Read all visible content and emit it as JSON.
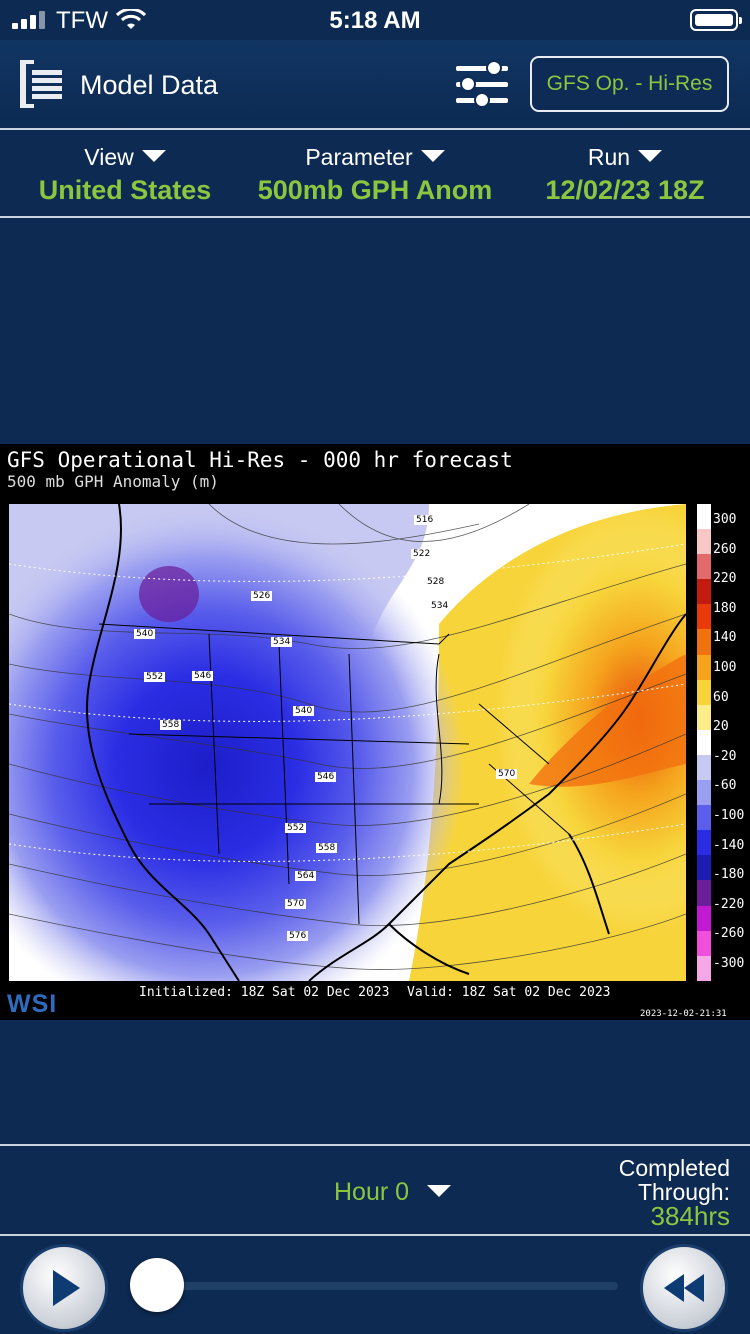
{
  "status": {
    "carrier": "TFW",
    "time": "5:18 AM"
  },
  "header": {
    "title": "Model Data",
    "model_button": "GFS Op. - Hi-Res"
  },
  "selectors": [
    {
      "label": "View",
      "value": "United States"
    },
    {
      "label": "Parameter",
      "value": "500mb GPH Anom"
    },
    {
      "label": "Run",
      "value": "12/02/23 18Z"
    }
  ],
  "map": {
    "title": "GFS Operational Hi-Res - 000 hr forecast",
    "subtitle": "500 mb GPH Anomaly (m)",
    "legend_ticks": [
      "300",
      "260",
      "220",
      "180",
      "140",
      "100",
      "60",
      "20",
      "-20",
      "-60",
      "-100",
      "-140",
      "-180",
      "-220",
      "-260",
      "-300"
    ],
    "legend_colors": [
      "#ffffff",
      "#f8c8c8",
      "#e26a6a",
      "#c21c10",
      "#e83a0a",
      "#f2710f",
      "#f5a31d",
      "#f7d43a",
      "#fbee8a",
      "#ffffff",
      "#c7c9f2",
      "#9a9ef0",
      "#5a5eeb",
      "#2a2de3",
      "#1c1cb0",
      "#6b1d9a",
      "#c21ad3",
      "#f04fdc",
      "#f7a6e8"
    ],
    "contour_labels": [
      "516",
      "522",
      "526",
      "528",
      "534",
      "534",
      "540",
      "540",
      "546",
      "546",
      "552",
      "552",
      "558",
      "558",
      "564",
      "570",
      "570",
      "576"
    ],
    "logo": "WSI",
    "initialized": "Initialized: 18Z Sat 02 Dec 2023",
    "valid": "Valid: 18Z Sat 02 Dec 2023",
    "stamp": "2023-12-02-21:31"
  },
  "controls": {
    "hour": "Hour 0",
    "completed_line1": "Completed",
    "completed_line2": "Through:",
    "completed_hours": "384hrs"
  }
}
